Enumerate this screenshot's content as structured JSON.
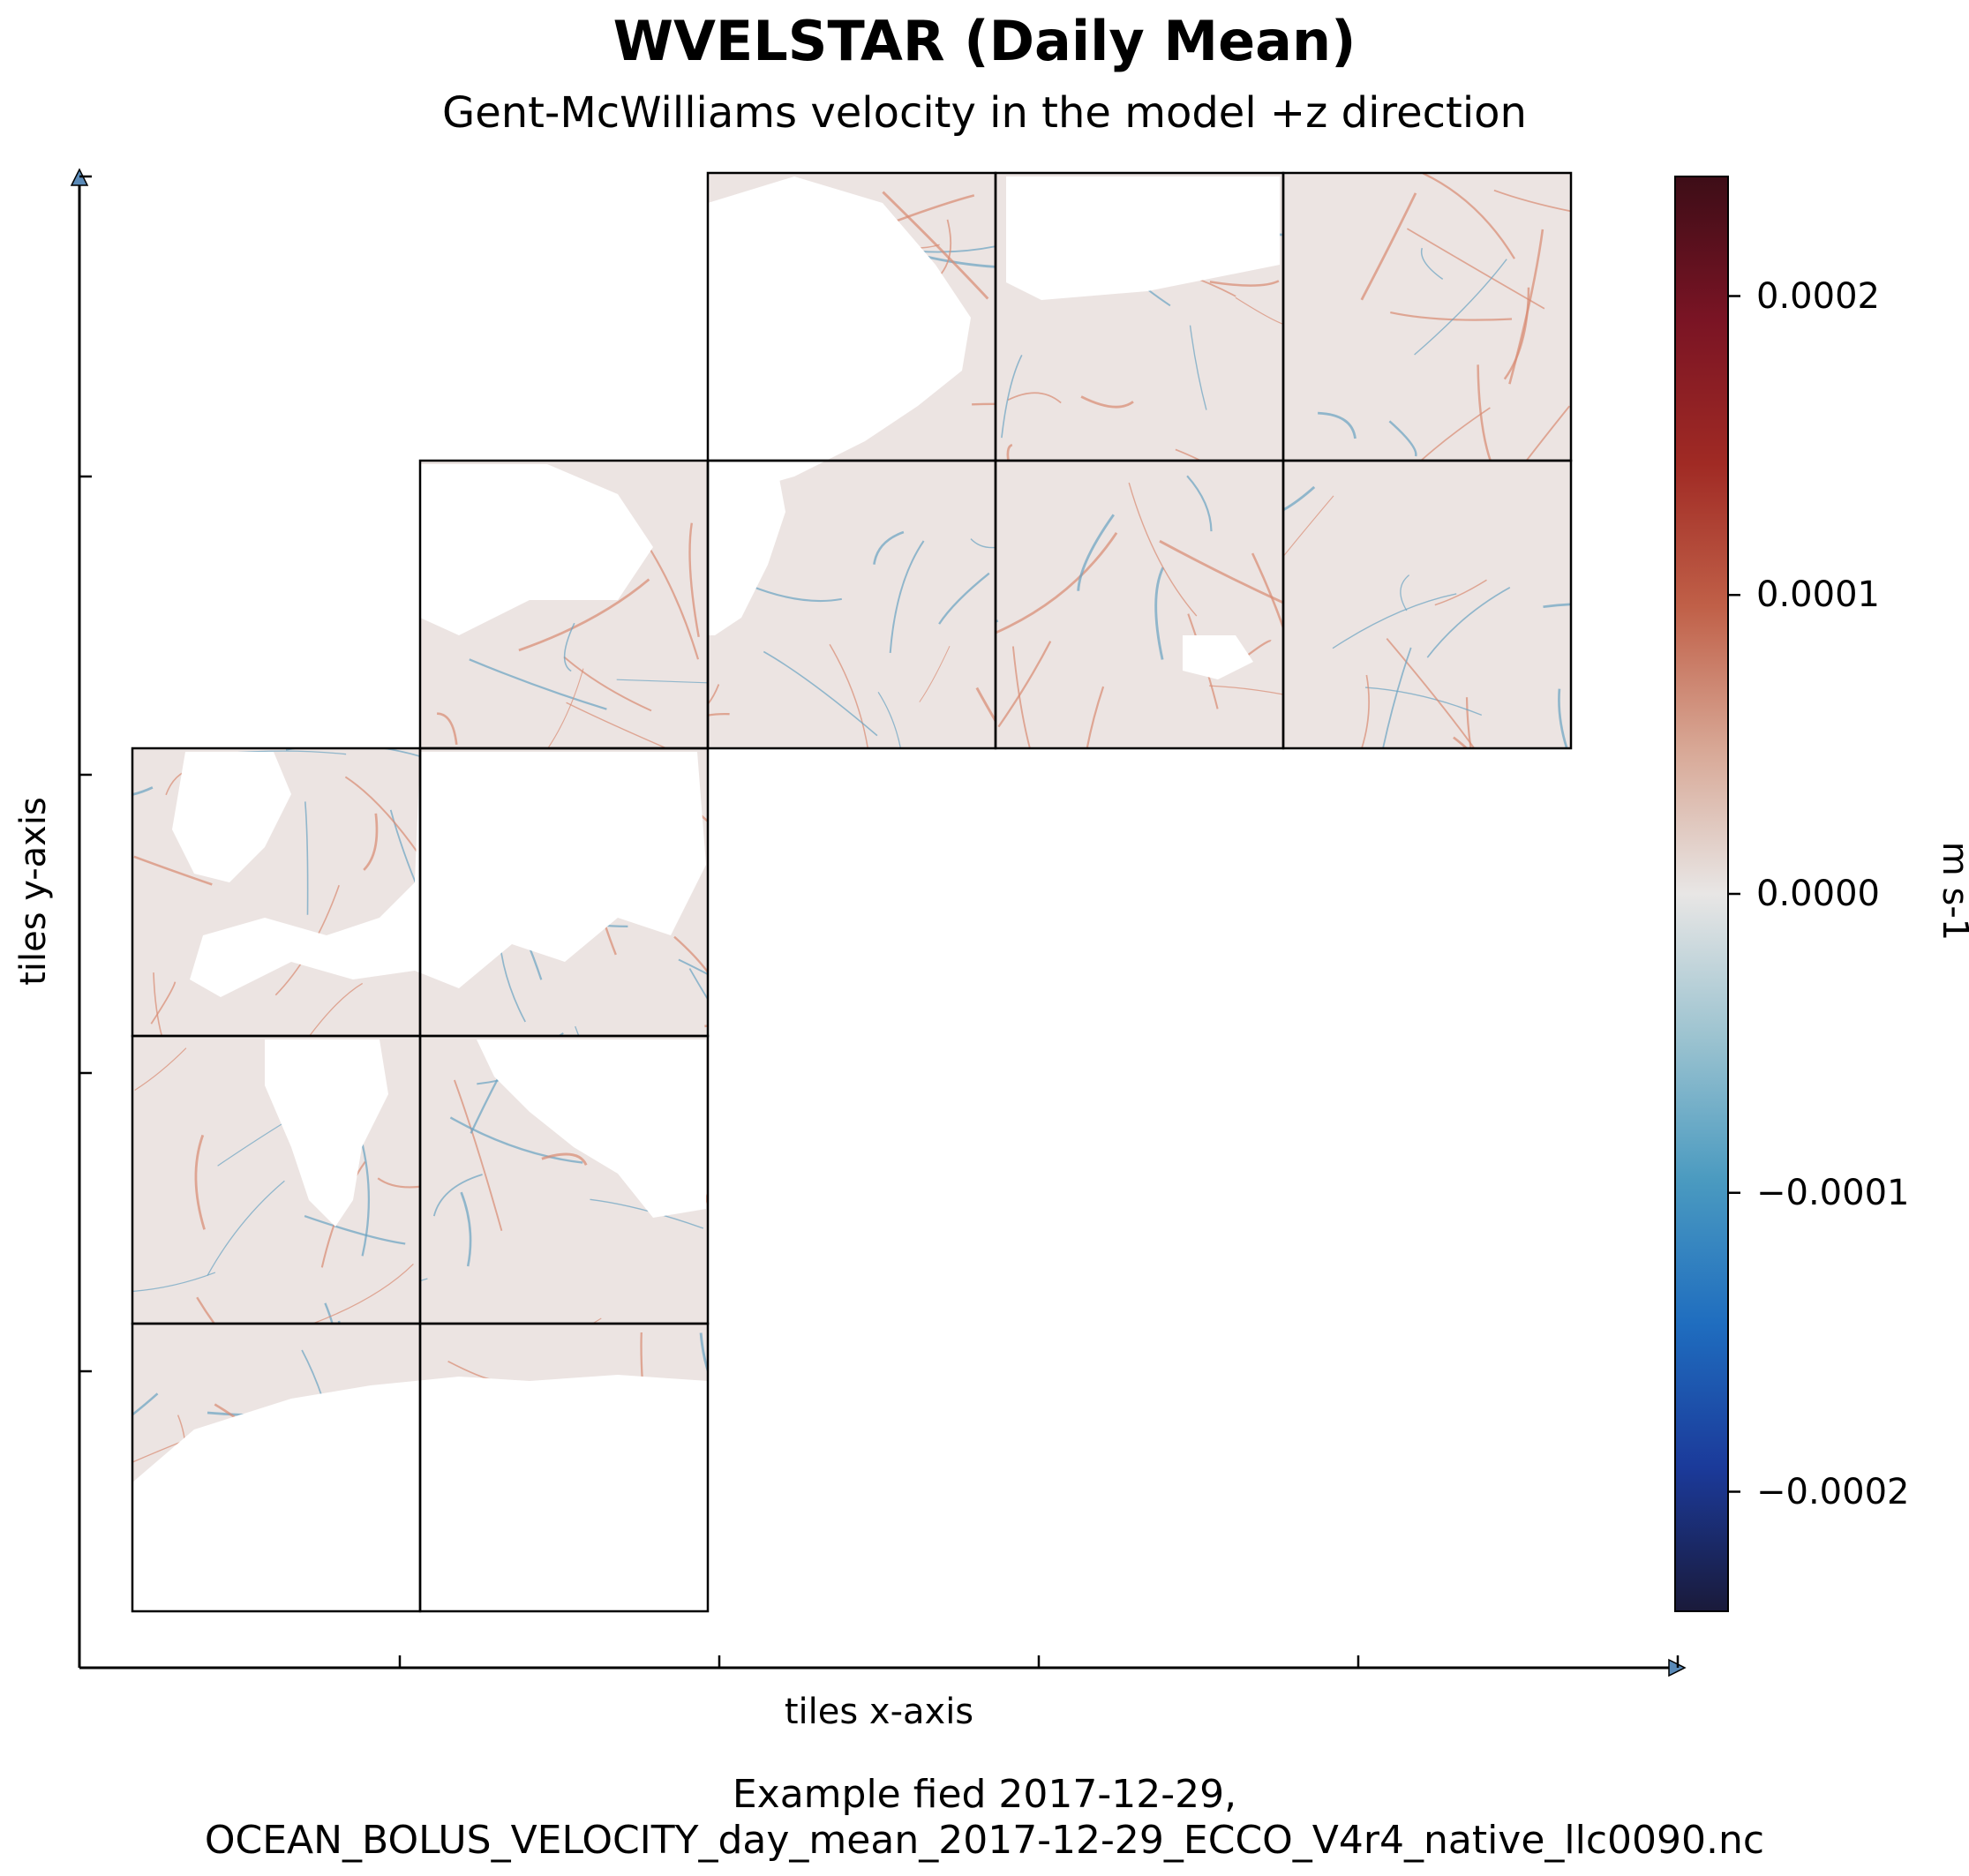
{
  "chart_data": {
    "type": "heatmap",
    "title": "WVELSTAR (Daily Mean)",
    "subtitle": "Gent-McWilliams velocity in the model +z direction",
    "xlabel": "tiles x-axis",
    "ylabel": "tiles y-axis",
    "caption": [
      "Example fied 2017-12-29,",
      "OCEAN_BOLUS_VELOCITY_day_mean_2017-12-29_ECCO_V4r4_native_llc0090.nc"
    ],
    "colorbar": {
      "label": "m s-1",
      "range": [
        -0.00024,
        0.00024
      ],
      "ticks": [
        0.0002,
        0.0001,
        0.0,
        -0.0001,
        -0.0002
      ],
      "tick_labels": [
        "0.0002",
        "0.0001",
        "0.0000",
        "−0.0001",
        "−0.0002"
      ],
      "colormap": "balance",
      "colors": [
        "#1a1a3a",
        "#1b3a9a",
        "#1f6dbf",
        "#4a9ac0",
        "#9cc3d0",
        "#e8e6e5",
        "#d8a896",
        "#c06048",
        "#a02a24",
        "#7a1424",
        "#3d0d17"
      ]
    },
    "tile_grid": {
      "tiles": [
        {
          "col": 0,
          "row": 0
        },
        {
          "col": 1,
          "row": 0
        },
        {
          "col": 0,
          "row": 1
        },
        {
          "col": 1,
          "row": 1
        },
        {
          "col": 0,
          "row": 2
        },
        {
          "col": 1,
          "row": 2
        },
        {
          "col": 1,
          "row": 3
        },
        {
          "col": 2,
          "row": 3
        },
        {
          "col": 3,
          "row": 3
        },
        {
          "col": 4,
          "row": 3
        },
        {
          "col": 2,
          "row": 4
        },
        {
          "col": 3,
          "row": 4
        },
        {
          "col": 4,
          "row": 4
        }
      ],
      "columns": 5,
      "rows": 5,
      "field_value_typical": 0.0,
      "land_color": "#ffffff",
      "ocean_color": "#ece4e2",
      "positive_streak_color": "#d98a72",
      "negative_streak_color": "#6aa2c2"
    },
    "x_ticks": 5,
    "y_ticks": 5,
    "grid": false
  }
}
